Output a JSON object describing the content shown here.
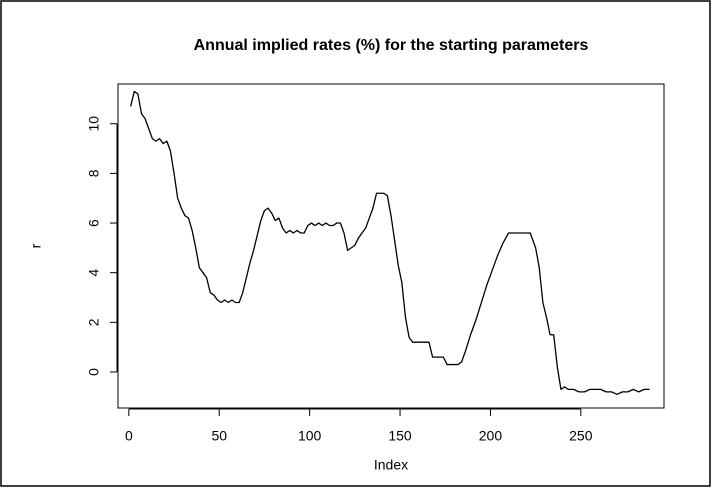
{
  "chart_data": {
    "type": "line",
    "title": "Annual implied rates (%) for the starting parameters",
    "x_label": "Index",
    "y_label": "r",
    "x": [
      1,
      3,
      5,
      7,
      9,
      11,
      13,
      15,
      17,
      19,
      21,
      23,
      25,
      27,
      29,
      31,
      33,
      35,
      37,
      39,
      41,
      43,
      45,
      47,
      49,
      51,
      53,
      55,
      57,
      59,
      61,
      63,
      65,
      67,
      69,
      71,
      73,
      75,
      77,
      79,
      81,
      83,
      85,
      87,
      89,
      91,
      93,
      95,
      97,
      99,
      101,
      103,
      105,
      107,
      109,
      111,
      113,
      115,
      117,
      119,
      121,
      123,
      125,
      127,
      129,
      131,
      133,
      135,
      137,
      139,
      141,
      143,
      145,
      147,
      149,
      151,
      153,
      155,
      157,
      160,
      163,
      166,
      168,
      171,
      174,
      176,
      179,
      182,
      184,
      186,
      189,
      192,
      195,
      198,
      201,
      204,
      207,
      210,
      213,
      216,
      219,
      222,
      225,
      227,
      229,
      231,
      233,
      235,
      237,
      239,
      241,
      243,
      246,
      249,
      252,
      255,
      258,
      261,
      264,
      267,
      270,
      273,
      276,
      279,
      282,
      285,
      288
    ],
    "series": [
      {
        "color": "#000000",
        "values": [
          10.7,
          11.3,
          11.2,
          10.4,
          10.2,
          9.8,
          9.4,
          9.3,
          9.4,
          9.2,
          9.3,
          8.9,
          8.0,
          7.0,
          6.6,
          6.3,
          6.2,
          5.7,
          5.0,
          4.2,
          4.0,
          3.8,
          3.2,
          3.1,
          2.9,
          2.8,
          2.9,
          2.8,
          2.9,
          2.8,
          2.8,
          3.2,
          3.8,
          4.4,
          4.9,
          5.5,
          6.1,
          6.5,
          6.6,
          6.4,
          6.1,
          6.2,
          5.8,
          5.6,
          5.7,
          5.6,
          5.7,
          5.6,
          5.6,
          5.9,
          6.0,
          5.9,
          6.0,
          5.9,
          6.0,
          5.9,
          5.9,
          6.0,
          6.0,
          5.6,
          4.9,
          5.0,
          5.1,
          5.4,
          5.6,
          5.8,
          6.2,
          6.6,
          7.2,
          7.2,
          7.2,
          7.1,
          6.3,
          5.3,
          4.3,
          3.6,
          2.2,
          1.4,
          1.2,
          1.2,
          1.2,
          1.2,
          0.6,
          0.6,
          0.6,
          0.3,
          0.3,
          0.3,
          0.4,
          0.8,
          1.5,
          2.1,
          2.8,
          3.5,
          4.1,
          4.7,
          5.2,
          5.6,
          5.6,
          5.6,
          5.6,
          5.6,
          5.0,
          4.2,
          2.8,
          2.2,
          1.5,
          1.5,
          0.2,
          -0.7,
          -0.6,
          -0.7,
          -0.7,
          -0.8,
          -0.8,
          -0.7,
          -0.7,
          -0.7,
          -0.8,
          -0.8,
          -0.9,
          -0.8,
          -0.8,
          -0.7,
          -0.8,
          -0.7,
          -0.7
        ]
      }
    ],
    "xlim": [
      -6,
      296
    ],
    "ylim": [
      -1.45,
      11.6
    ],
    "xticks": [
      0,
      50,
      100,
      150,
      200,
      250
    ],
    "yticks": [
      0,
      2,
      4,
      6,
      8,
      10
    ]
  }
}
